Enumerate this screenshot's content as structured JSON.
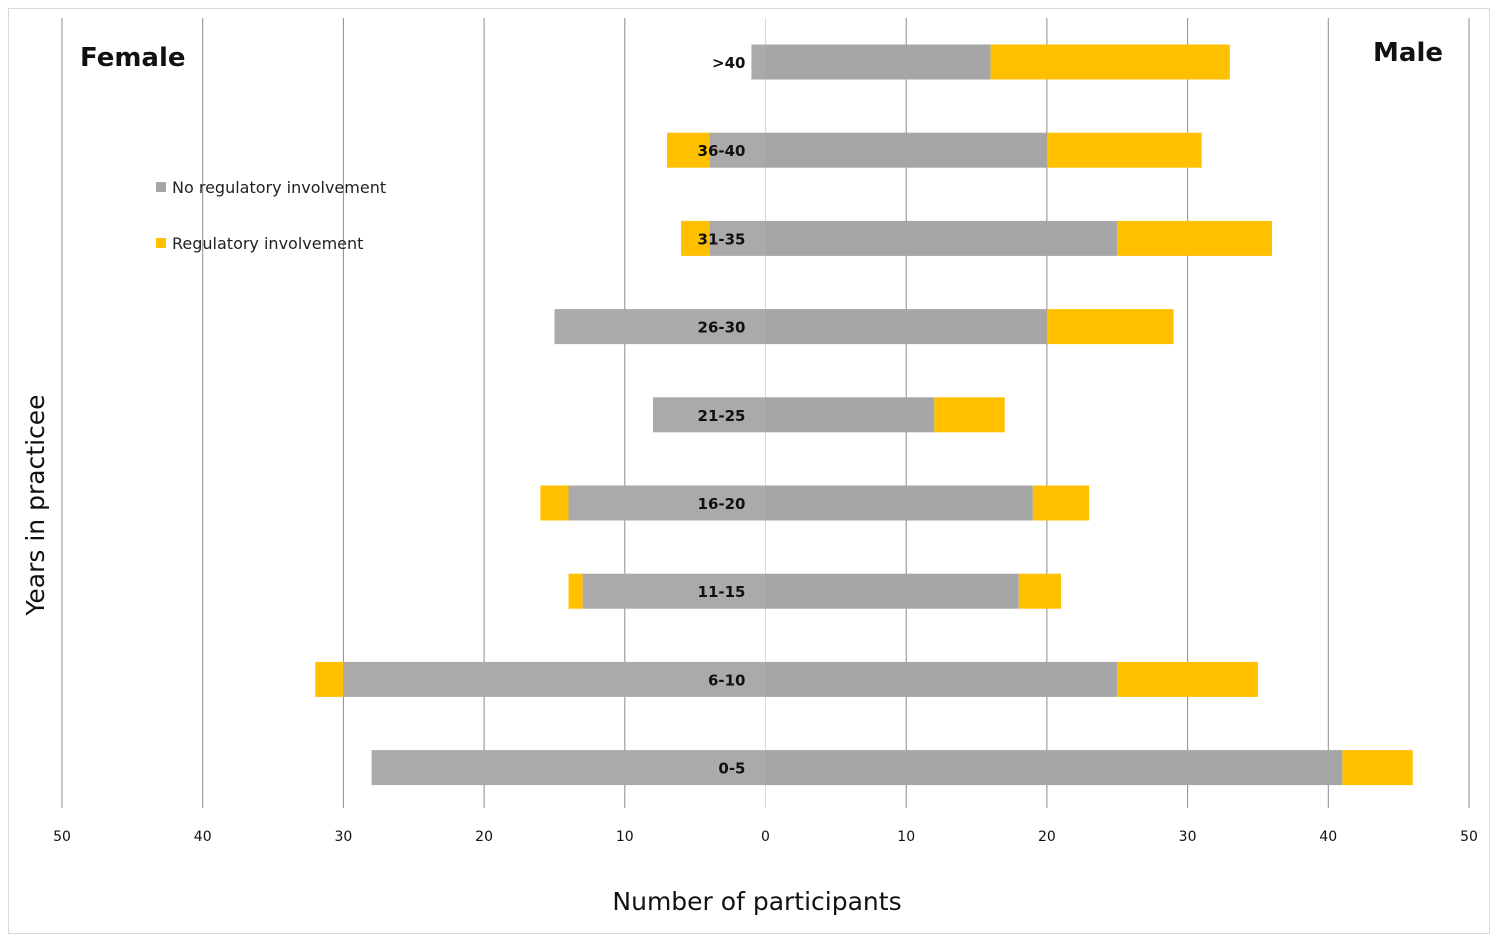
{
  "chart_data": {
    "type": "bar",
    "orientation": "horizontal",
    "layout": "diverging-stacked",
    "categories": [
      ">40",
      "36-40",
      "31-35",
      "26-30",
      "21-25",
      "16-20",
      "11-15",
      "6-10",
      "0-5"
    ],
    "groups": {
      "female": {
        "label": "Female",
        "series": [
          {
            "name": "No regulatory involvement",
            "values": [
              1,
              4,
              4,
              15,
              8,
              14,
              13,
              30,
              28
            ]
          },
          {
            "name": "Regulatory involvement",
            "values": [
              0,
              3,
              2,
              0,
              0,
              2,
              1,
              2,
              0
            ]
          }
        ]
      },
      "male": {
        "label": "Male",
        "series": [
          {
            "name": "No regulatory involvement",
            "values": [
              16,
              20,
              25,
              20,
              12,
              19,
              18,
              25,
              41
            ]
          },
          {
            "name": "Regulatory involvement",
            "values": [
              17,
              11,
              11,
              9,
              5,
              4,
              3,
              10,
              5
            ]
          }
        ]
      }
    },
    "legend": {
      "entries": [
        "No regulatory involvement",
        "Regulatory involvement"
      ],
      "placement": "upper-left"
    },
    "colors": {
      "female_no": "#aca9a9",
      "male_no": "#a6a6a6",
      "regulatory": "#ffc000",
      "grid": "#8c8c8c"
    },
    "xlabel": "Number of participants",
    "ylabel": "Years in practicee",
    "xlim": [
      -50,
      50
    ],
    "xticks": [
      -50,
      -40,
      -30,
      -20,
      -10,
      0,
      10,
      20,
      30,
      40,
      50
    ],
    "xtick_labels": [
      "50",
      "40",
      "30",
      "20",
      "10",
      "0",
      "10",
      "20",
      "30",
      "40",
      "50"
    ],
    "grid": "vertical"
  }
}
